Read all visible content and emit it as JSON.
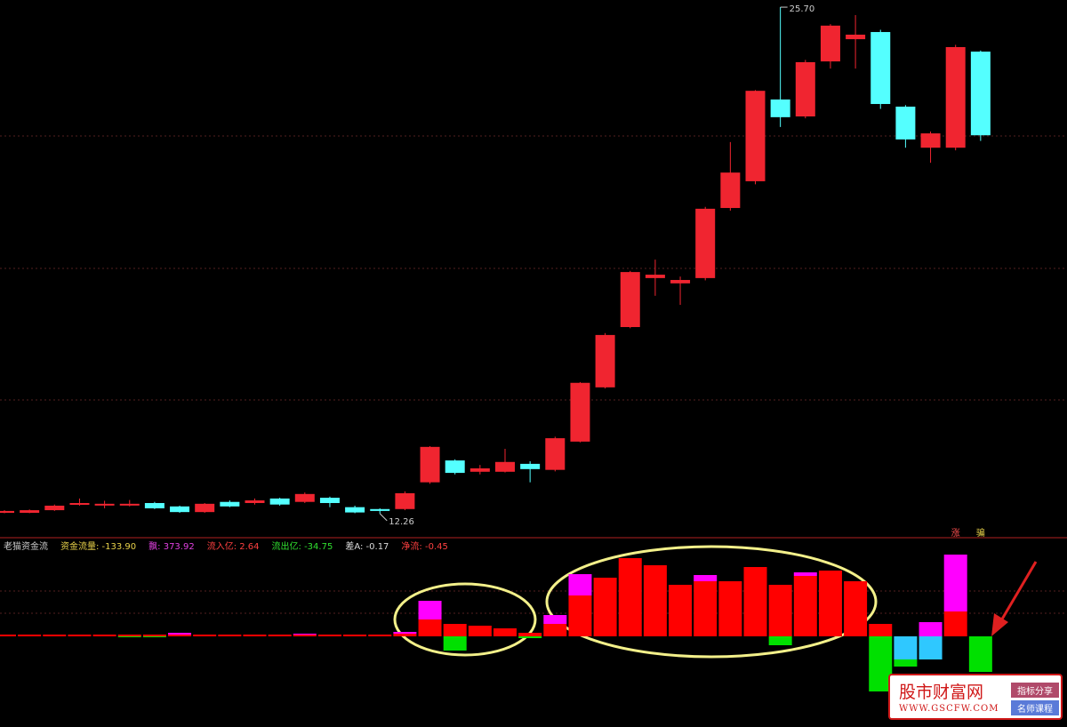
{
  "chart_data": [
    {
      "type": "candlestick",
      "up_color": "#f02530",
      "down_color": "#54ffff",
      "ylim": [
        11.62,
        25.89
      ],
      "high_label": "25.70",
      "low_label": "12.26",
      "open": [
        12.28,
        12.28,
        12.35,
        12.5,
        12.5,
        12.5,
        12.54,
        12.45,
        12.3,
        12.57,
        12.54,
        12.66,
        12.57,
        12.68,
        12.43,
        12.38,
        12.38,
        13.09,
        13.67,
        13.37,
        13.37,
        13.58,
        13.42,
        14.17,
        15.61,
        17.21,
        18.51,
        18.37,
        18.51,
        20.37,
        21.08,
        23.25,
        22.8,
        24.26,
        24.85,
        25.04,
        23.06,
        21.97,
        21.97,
        24.52
      ],
      "high": [
        12.35,
        12.37,
        12.5,
        12.66,
        12.6,
        12.62,
        12.57,
        12.47,
        12.54,
        12.61,
        12.66,
        12.68,
        12.82,
        12.71,
        12.47,
        12.4,
        12.85,
        14.05,
        13.7,
        13.55,
        13.98,
        13.65,
        14.3,
        15.75,
        17.05,
        18.7,
        19.0,
        18.55,
        20.4,
        22.12,
        23.5,
        25.7,
        24.3,
        25.25,
        25.49,
        25.1,
        23.1,
        22.4,
        24.7,
        24.55
      ],
      "low": [
        12.27,
        12.27,
        12.33,
        12.47,
        12.4,
        12.45,
        12.38,
        12.28,
        12.28,
        12.43,
        12.5,
        12.47,
        12.54,
        12.43,
        12.27,
        12.26,
        12.35,
        13.05,
        13.3,
        13.3,
        13.35,
        13.09,
        13.38,
        14.15,
        15.58,
        17.18,
        18.04,
        17.8,
        18.45,
        20.3,
        21.0,
        22.52,
        22.75,
        24.07,
        24.07,
        23.0,
        21.97,
        21.57,
        21.9,
        22.15
      ],
      "close": [
        12.33,
        12.35,
        12.47,
        12.54,
        12.52,
        12.52,
        12.4,
        12.3,
        12.52,
        12.45,
        12.61,
        12.5,
        12.78,
        12.54,
        12.29,
        12.33,
        12.8,
        14.03,
        13.34,
        13.46,
        13.63,
        13.44,
        14.26,
        15.73,
        17.0,
        18.67,
        18.6,
        18.46,
        20.35,
        21.31,
        23.48,
        22.78,
        24.24,
        25.21,
        24.97,
        23.13,
        22.19,
        22.35,
        24.64,
        22.3
      ]
    },
    {
      "type": "stacked_bar",
      "title": "老猫资金流",
      "ylim": [
        -98,
        111
      ],
      "header": [
        {
          "text": "资金流量: -133.90",
          "color": "#e8d24a"
        },
        {
          "text": "飘: 373.92",
          "color": "#e040e0"
        },
        {
          "text": "流入亿: 2.64",
          "color": "#ff4040"
        },
        {
          "text": "流出亿: -34.75",
          "color": "#30e030"
        },
        {
          "text": "差A: -0.17",
          "color": "#dddddd"
        },
        {
          "text": "净流: -0.45",
          "color": "#ff4040"
        }
      ],
      "signal_labels": [
        "涨",
        "骗"
      ],
      "series": [
        {
          "color": "#ff0000",
          "values": [
            2,
            2,
            2,
            2,
            2,
            2,
            2,
            2,
            2,
            2,
            2,
            2,
            2,
            2,
            2,
            2,
            3,
            19,
            14,
            12,
            9,
            4,
            14,
            46,
            66,
            88,
            80,
            58,
            62,
            62,
            78,
            58,
            68,
            74,
            62,
            14,
            0,
            0,
            28,
            0
          ]
        },
        {
          "color": "#ff00ff",
          "values": [
            0,
            0,
            0,
            0,
            0,
            0,
            0,
            2,
            0,
            0,
            0,
            0,
            1,
            0,
            0,
            0,
            2,
            21,
            0,
            0,
            0,
            0,
            10,
            24,
            0,
            0,
            0,
            0,
            7,
            0,
            0,
            0,
            4,
            0,
            0,
            0,
            0,
            16,
            64,
            0
          ]
        },
        {
          "color": "#2fc8ff",
          "values": [
            0,
            0,
            0,
            0,
            0,
            0,
            0,
            0,
            0,
            0,
            0,
            0,
            0,
            0,
            0,
            0,
            0,
            0,
            0,
            0,
            0,
            0,
            0,
            0,
            0,
            0,
            0,
            0,
            0,
            0,
            0,
            0,
            0,
            0,
            0,
            0,
            -26,
            -26,
            0,
            0
          ]
        },
        {
          "color": "#00e000",
          "values": [
            0,
            0,
            0,
            0,
            0,
            -1,
            -1,
            0,
            0,
            0,
            0,
            0,
            0,
            0,
            0,
            0,
            0,
            0,
            -16,
            0,
            0,
            -2,
            0,
            0,
            0,
            0,
            0,
            0,
            0,
            0,
            0,
            -10,
            0,
            0,
            0,
            -62,
            -8,
            0,
            0,
            -40
          ]
        }
      ]
    }
  ],
  "watermark": {
    "title": "股市财富网",
    "url": "WWW.GSCFW.COM",
    "tags": [
      "指标分享",
      "名师课程"
    ]
  }
}
